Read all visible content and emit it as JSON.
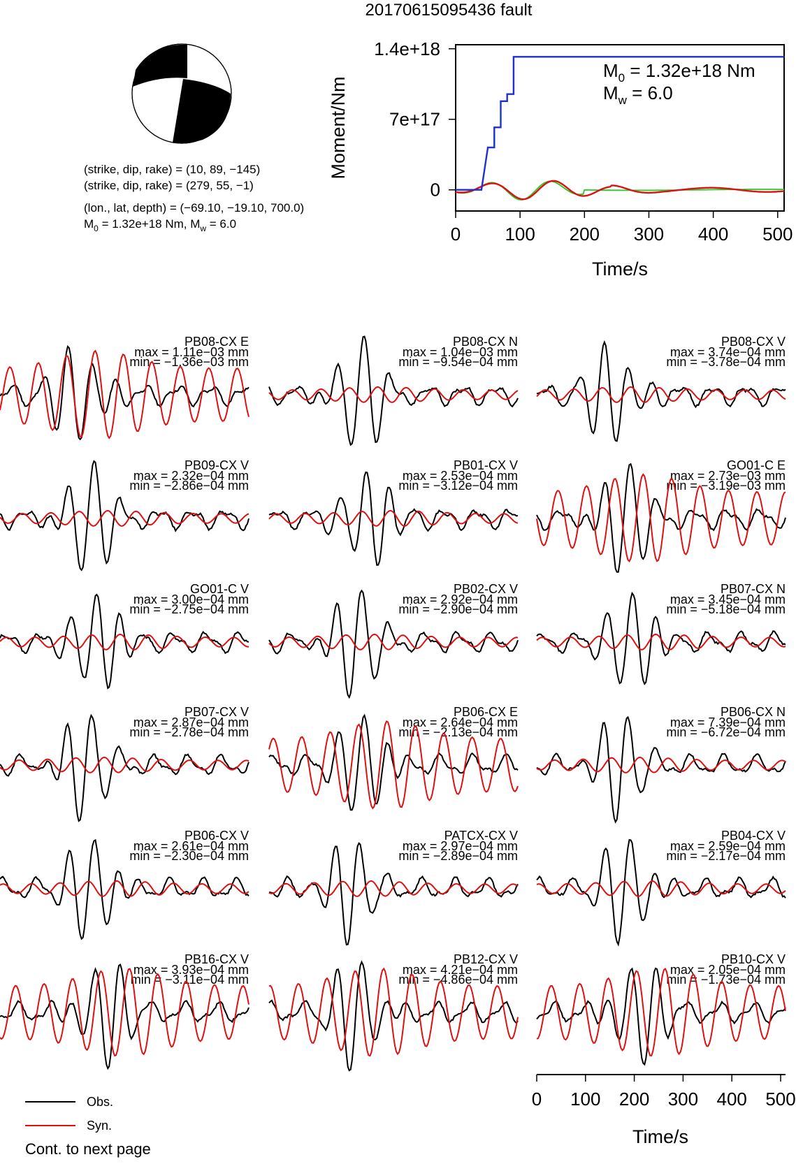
{
  "title": "20170615095436 fault",
  "focal_mechanism": {
    "line1": "(strike, dip, rake) = (10, 89, −145)",
    "line2": "(strike, dip, rake) = (279, 55, −1)",
    "line3": "(lon., lat, depth) = (−69.10, −19.10, 700.0)",
    "line4_m0_prefix": "M",
    "line4_m0_sub": "0",
    "line4_m0_value": " = 1.32e+18 Nm, M",
    "line4_mw_sub": "w",
    "line4_mw_value": " = 6.0",
    "colors": {
      "compression": "#000000",
      "dilatation": "#ffffff"
    }
  },
  "moment_plot": {
    "ylabel": "Moment/Nm",
    "xlabel": "Time/s",
    "xticks": [
      "0",
      "100",
      "200",
      "300",
      "400",
      "500"
    ],
    "yticks": [
      "0",
      "7e+17",
      "1.4e+18"
    ],
    "xlim": [
      0,
      510
    ],
    "ylim": [
      -2.1e+17,
      1.44e+18
    ],
    "m0_sym": "M",
    "m0_sub": "0",
    "m0_text": " = 1.32e+18 Nm",
    "mw_sym": "M",
    "mw_sub": "w",
    "mw_text": " = 6.0",
    "cumulative_moment": {
      "color": "#1f2fd0",
      "x": [
        0,
        40,
        50,
        50,
        60,
        60,
        70,
        70,
        80,
        80,
        90,
        90,
        510
      ],
      "y": [
        0,
        0,
        4.2e+17,
        4.2e+17,
        4.2e+17,
        6.2e+17,
        6.2e+17,
        8.8e+17,
        8.8e+17,
        9.5e+17,
        9.5e+17,
        1.32e+18,
        1.32e+18
      ]
    },
    "source_time_functions": [
      {
        "color": "#22cc22",
        "amp": 1e+17
      },
      {
        "color": "#dd1111",
        "amp": 1.2e+17
      }
    ]
  },
  "waveforms": [
    {
      "station": "PB08-CX E",
      "max": "max = 1.11e−03 mm",
      "min": "min = −1.36e−03 mm"
    },
    {
      "station": "PB08-CX N",
      "max": "max = 1.04e−03 mm",
      "min": "min = −9.54e−04 mm"
    },
    {
      "station": "PB08-CX V",
      "max": "max = 3.74e−04 mm",
      "min": "min = −3.78e−04 mm"
    },
    {
      "station": "PB09-CX V",
      "max": "max = 2.32e−04 mm",
      "min": "min = −2.86e−04 mm"
    },
    {
      "station": "PB01-CX V",
      "max": "max = 2.53e−04 mm",
      "min": "min = −3.12e−04 mm"
    },
    {
      "station": "GO01-C E",
      "max": "max = 2.73e−03 mm",
      "min": "min = −3.19e−03 mm"
    },
    {
      "station": "GO01-C V",
      "max": "max = 3.00e−04 mm",
      "min": "min = −2.75e−04 mm"
    },
    {
      "station": "PB02-CX V",
      "max": "max = 2.92e−04 mm",
      "min": "min = −2.90e−04 mm"
    },
    {
      "station": "PB07-CX N",
      "max": "max = 3.45e−04 mm",
      "min": "min = −5.18e−04 mm"
    },
    {
      "station": "PB07-CX V",
      "max": "max = 2.87e−04 mm",
      "min": "min = −2.78e−04 mm"
    },
    {
      "station": "PB06-CX E",
      "max": "max = 2.64e−04 mm",
      "min": "min = −2.13e−04 mm"
    },
    {
      "station": "PB06-CX N",
      "max": "max = 7.39e−04 mm",
      "min": "min = −6.72e−04 mm"
    },
    {
      "station": "PB06-CX V",
      "max": "max = 2.61e−04 mm",
      "min": "min = −2.30e−04 mm"
    },
    {
      "station": "PATCX-CX V",
      "max": "max = 2.97e−04 mm",
      "min": "min = −2.89e−04 mm"
    },
    {
      "station": "PB04-CX V",
      "max": "max = 2.59e−04 mm",
      "min": "min = −2.17e−04 mm"
    },
    {
      "station": "PB16-CX V",
      "max": "max = 3.93e−04 mm",
      "min": "min = −3.11e−04 mm"
    },
    {
      "station": "PB12-CX V",
      "max": "max = 4.21e−04 mm",
      "min": "min = −4.86e−04 mm"
    },
    {
      "station": "PB10-CX V",
      "max": "max = 2.05e−04 mm",
      "min": "min = −1.73e−04 mm"
    }
  ],
  "waveform_axis": {
    "xticks": [
      "0",
      "100",
      "200",
      "300",
      "400",
      "500"
    ],
    "xlabel": "Time/s",
    "xlim": [
      0,
      510
    ]
  },
  "legend": {
    "obs_label": "Obs.",
    "syn_label": "Syn.",
    "obs_color": "#000000",
    "syn_color": "#dd1111"
  },
  "footer": "Cont. to next page",
  "chart_data": [
    {
      "type": "line",
      "title": "",
      "xlabel": "Time/s",
      "ylabel": "Moment/Nm",
      "xlim": [
        0,
        510
      ],
      "ylim": [
        -2.1e+17,
        1.44e+18
      ],
      "series": [
        {
          "values_x": [
            0,
            40,
            50,
            60,
            70,
            80,
            90,
            510
          ],
          "values": [
            0,
            0,
            4.2e+17,
            6.2e+17,
            8.8e+17,
            9.5e+17,
            1.32e+18,
            1.32e+18
          ]
        }
      ]
    },
    {
      "type": "line",
      "title": "",
      "xlabel": "Time/s",
      "xlim": [
        0,
        510
      ],
      "panels": [
        "PB08-CX E",
        "PB08-CX N",
        "PB08-CX V",
        "PB09-CX V",
        "PB01-CX V",
        "GO01-C E",
        "GO01-C V",
        "PB02-CX V",
        "PB07-CX N",
        "PB07-CX V",
        "PB06-CX E",
        "PB06-CX N",
        "PB06-CX V",
        "PATCX-CX V",
        "PB04-CX V",
        "PB16-CX V",
        "PB12-CX V",
        "PB10-CX V"
      ],
      "series": [
        {
          "name": "Obs."
        },
        {
          "name": "Syn."
        }
      ]
    }
  ]
}
